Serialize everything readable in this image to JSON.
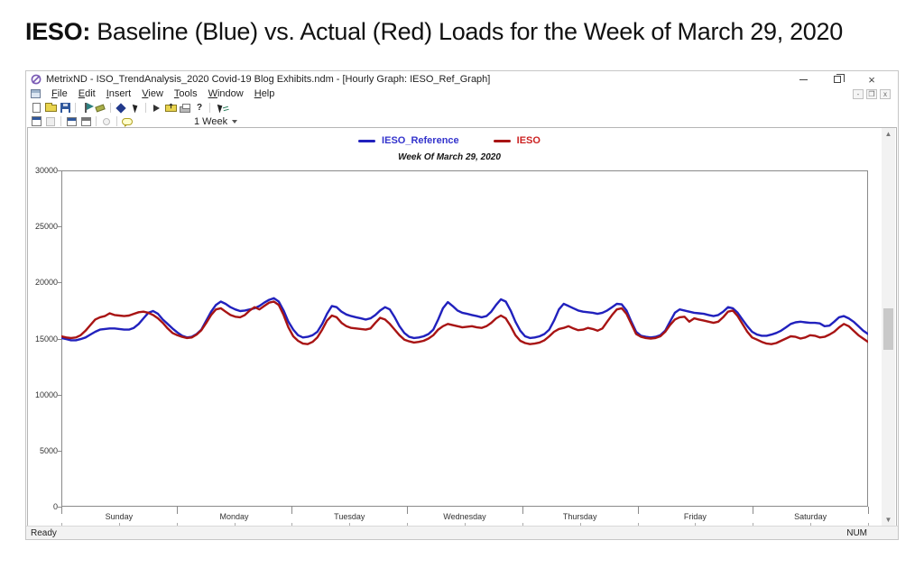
{
  "page": {
    "title_bold": "IESO:",
    "title_rest": " Baseline (Blue) vs. Actual (Red) Loads for the Week of March 29, 2020"
  },
  "window": {
    "title": "MetrixND - ISO_TrendAnalysis_2020 Covid-19 Blog Exhibits.ndm - [Hourly Graph: IESO_Ref_Graph]",
    "controls": {
      "minimize": "minimize",
      "restore": "restore",
      "close": "×"
    },
    "menu": {
      "items": [
        "File",
        "Edit",
        "Insert",
        "View",
        "Tools",
        "Window",
        "Help"
      ]
    },
    "child_controls": {
      "minimize": "-",
      "restore": "❐",
      "close": "x"
    },
    "toolbar_main_icons": [
      "new-file-icon",
      "open-folder-icon",
      "save-icon",
      "flag-icon",
      "format-brush-icon",
      "run-model-icon",
      "pointer-icon",
      "play-icon",
      "export-folder-icon",
      "print-icon",
      "help-icon",
      "select-tool-icon"
    ],
    "toolbar_graph_icons": [
      "grid-view-icon",
      "disabled-doc-icon",
      "window-icon",
      "window-alt-icon",
      "disabled-refresh-icon",
      "comment-bubble-icon"
    ],
    "range_selector": "1 Week",
    "status": {
      "left": "Ready",
      "right": "NUM"
    }
  },
  "chart_data": {
    "type": "line",
    "title": "Week Of March 29, 2020",
    "x_unit": "hour of week (hourly, Sun 00:00 - Sat 23:00)",
    "x_range": [
      0,
      167
    ],
    "ylim": [
      0,
      30000
    ],
    "yticks": [
      0,
      5000,
      10000,
      15000,
      20000,
      25000,
      30000
    ],
    "day_labels": [
      "Sunday",
      "Monday",
      "Tuesday",
      "Wednesday",
      "Thursday",
      "Friday",
      "Saturday"
    ],
    "grid": false,
    "legend_position": "top-center",
    "series": [
      {
        "name": "IESO_Reference",
        "color": "#2121bd",
        "values": [
          15050,
          14950,
          14850,
          14850,
          14950,
          15100,
          15350,
          15600,
          15800,
          15850,
          15900,
          15900,
          15850,
          15800,
          15800,
          15950,
          16300,
          16800,
          17300,
          17450,
          17200,
          16700,
          16300,
          15900,
          15550,
          15250,
          15100,
          15150,
          15400,
          15800,
          16600,
          17400,
          18000,
          18300,
          18100,
          17800,
          17600,
          17450,
          17500,
          17600,
          17700,
          17900,
          18200,
          18450,
          18600,
          18300,
          17500,
          16500,
          15800,
          15300,
          15100,
          15150,
          15300,
          15600,
          16300,
          17200,
          17900,
          17800,
          17400,
          17150,
          17000,
          16900,
          16800,
          16700,
          16800,
          17100,
          17500,
          17800,
          17600,
          16900,
          16100,
          15500,
          15150,
          15050,
          15100,
          15200,
          15400,
          15800,
          16700,
          17700,
          18250,
          17900,
          17500,
          17300,
          17200,
          17100,
          17000,
          16900,
          17000,
          17400,
          18000,
          18500,
          18300,
          17500,
          16500,
          15700,
          15200,
          15050,
          15100,
          15200,
          15400,
          15800,
          16600,
          17600,
          18100,
          17900,
          17700,
          17500,
          17400,
          17350,
          17300,
          17200,
          17300,
          17500,
          17800,
          18100,
          18050,
          17500,
          16500,
          15600,
          15250,
          15150,
          15100,
          15150,
          15300,
          15700,
          16500,
          17300,
          17600,
          17500,
          17400,
          17300,
          17250,
          17200,
          17100,
          17000,
          17100,
          17400,
          17800,
          17700,
          17300,
          16700,
          16100,
          15600,
          15350,
          15250,
          15250,
          15350,
          15500,
          15700,
          16000,
          16300,
          16450,
          16500,
          16450,
          16400,
          16400,
          16350,
          16100,
          16150,
          16500,
          16900,
          17000,
          16800,
          16500,
          16100,
          15700,
          15400
        ]
      },
      {
        "name": "IESO",
        "color": "#a81414",
        "values": [
          15200,
          15100,
          15050,
          15100,
          15300,
          15700,
          16200,
          16700,
          16900,
          17000,
          17250,
          17100,
          17050,
          17000,
          17050,
          17200,
          17350,
          17400,
          17300,
          17100,
          16800,
          16400,
          15900,
          15500,
          15300,
          15150,
          15050,
          15100,
          15350,
          15750,
          16400,
          17100,
          17600,
          17700,
          17400,
          17100,
          16950,
          16900,
          17100,
          17500,
          17800,
          17600,
          17900,
          18200,
          18300,
          18000,
          17100,
          16000,
          15200,
          14800,
          14550,
          14500,
          14700,
          15100,
          15800,
          16600,
          17050,
          16900,
          16400,
          16100,
          15950,
          15900,
          15850,
          15800,
          15900,
          16400,
          16850,
          16700,
          16300,
          15800,
          15300,
          14900,
          14750,
          14650,
          14700,
          14800,
          15000,
          15300,
          15800,
          16100,
          16300,
          16200,
          16100,
          16000,
          16050,
          16100,
          16000,
          15950,
          16100,
          16400,
          16800,
          17050,
          16800,
          16100,
          15300,
          14800,
          14600,
          14500,
          14550,
          14650,
          14850,
          15200,
          15600,
          15850,
          15950,
          16100,
          15900,
          15750,
          15800,
          15950,
          15850,
          15700,
          15900,
          16500,
          17100,
          17600,
          17700,
          17200,
          16300,
          15400,
          15150,
          15050,
          15000,
          15050,
          15200,
          15600,
          16200,
          16700,
          16900,
          16950,
          16500,
          16800,
          16700,
          16600,
          16500,
          16400,
          16500,
          16900,
          17400,
          17500,
          17000,
          16300,
          15600,
          15100,
          14900,
          14700,
          14550,
          14500,
          14600,
          14800,
          15000,
          15200,
          15150,
          15000,
          15100,
          15300,
          15250,
          15100,
          15150,
          15350,
          15600,
          16000,
          16300,
          16100,
          15700,
          15300,
          15000,
          14700
        ]
      }
    ]
  }
}
